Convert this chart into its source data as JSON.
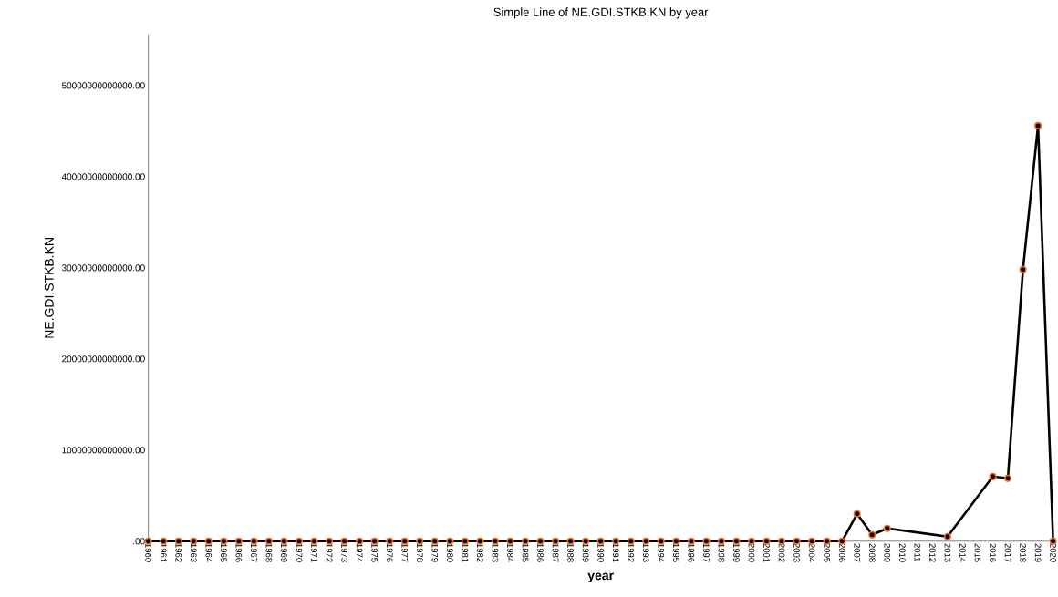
{
  "chart_data": {
    "type": "line",
    "title": "Simple Line of NE.GDI.STKB.KN by year",
    "xlabel": "year",
    "ylabel": "NE.GDI.STKB.KN",
    "categories": [
      "1960",
      "1961",
      "1962",
      "1963",
      "1964",
      "1965",
      "1966",
      "1967",
      "1968",
      "1969",
      "1970",
      "1971",
      "1972",
      "1973",
      "1974",
      "1975",
      "1976",
      "1977",
      "1978",
      "1979",
      "1980",
      "1981",
      "1982",
      "1983",
      "1984",
      "1985",
      "1986",
      "1987",
      "1988",
      "1989",
      "1990",
      "1991",
      "1992",
      "1993",
      "1994",
      "1995",
      "1996",
      "1997",
      "1998",
      "1999",
      "2000",
      "2001",
      "2002",
      "2003",
      "2004",
      "2005",
      "2006",
      "2007",
      "2008",
      "2009",
      "2010",
      "2011",
      "2012",
      "2013",
      "2014",
      "2015",
      "2016",
      "2017",
      "2018",
      "2019",
      "2020"
    ],
    "series": [
      {
        "color": "#000000",
        "values": [
          0,
          0,
          0,
          0,
          0,
          0,
          0,
          0,
          0,
          0,
          0,
          0,
          0,
          0,
          0,
          0,
          0,
          0,
          0,
          0,
          0,
          0,
          0,
          0,
          0,
          0,
          0,
          0,
          0,
          0,
          0,
          0,
          0,
          0,
          0,
          0,
          0,
          0,
          0,
          0,
          0,
          0,
          0,
          0,
          0,
          0,
          0,
          3000000000000,
          700000000000,
          1400000000000,
          null,
          null,
          null,
          500000000000,
          null,
          null,
          7100000000000,
          6900000000000,
          29800000000000,
          45600000000000,
          0
        ]
      }
    ],
    "ylim": [
      0,
      55600000000000
    ],
    "yticks": [
      {
        "value": 0,
        "label": ".00"
      },
      {
        "value": 10000000000000,
        "label": "10000000000000.00"
      },
      {
        "value": 20000000000000,
        "label": "20000000000000.00"
      },
      {
        "value": 30000000000000,
        "label": "30000000000000.00"
      },
      {
        "value": 40000000000000,
        "label": "40000000000000.00"
      },
      {
        "value": 50000000000000,
        "label": "50000000000000.00"
      }
    ],
    "marker": "circle",
    "line_style": "solid",
    "grid": false
  }
}
